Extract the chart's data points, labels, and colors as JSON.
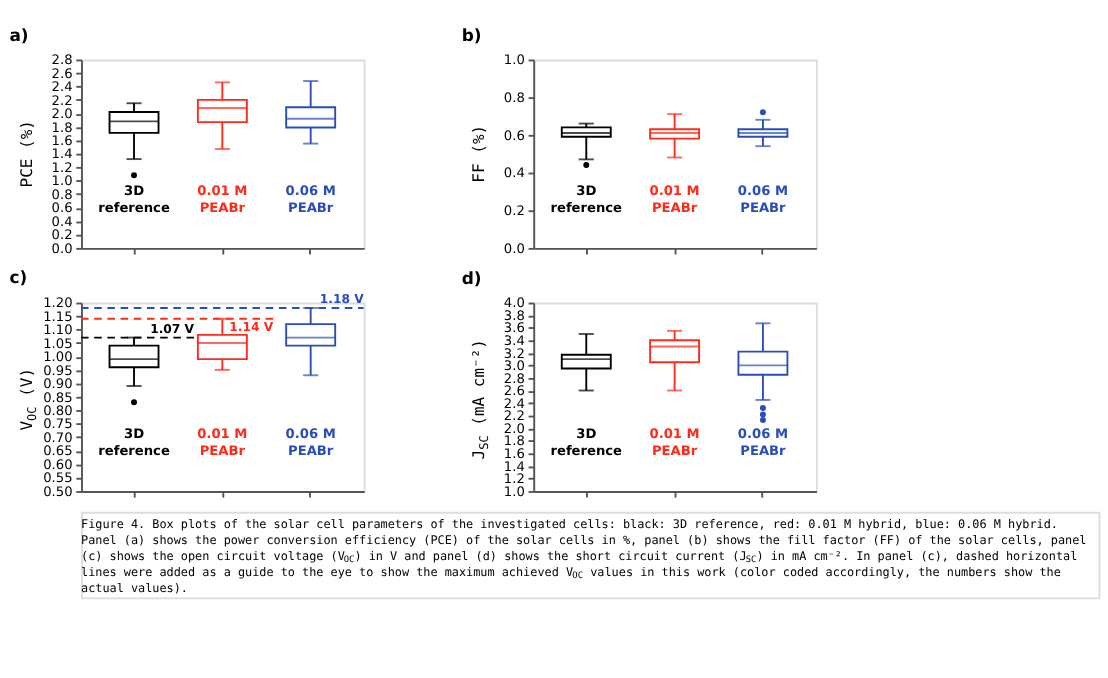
{
  "chart_data": [
    {
      "type": "box",
      "title": "a)",
      "ylabel": "PCE (%)",
      "categories": [
        "3D\nreference",
        "0.01 M\nPEABr",
        "0.06 M\nPEABr"
      ],
      "colors": [
        "#000000",
        "#ff2a1a",
        "#2a4db8"
      ],
      "boxes": [
        {
          "low": 1.32,
          "q1": 1.71,
          "median": 1.88,
          "q3": 2.02,
          "high": 2.15,
          "outliers": [
            1.08
          ]
        },
        {
          "low": 1.47,
          "q1": 1.87,
          "median": 2.08,
          "q3": 2.2,
          "high": 2.46
        },
        {
          "low": 1.55,
          "q1": 1.79,
          "median": 1.92,
          "q3": 2.09,
          "high": 2.48
        }
      ],
      "ylim": [
        0,
        2.8
      ],
      "yticks": [
        {
          "value": 0,
          "label": "0.0"
        },
        0.2,
        0.4,
        0.6,
        0.8,
        {
          "value": 1,
          "label": "1.0"
        },
        1.2,
        1.4,
        1.6,
        1.8,
        {
          "value": 2,
          "label": "2.0"
        },
        2.2,
        2.4,
        2.6,
        2.8
      ]
    },
    {
      "type": "box",
      "title": "b)",
      "ylabel": "FF (%)",
      "categories": [
        "3D\nreference",
        "0.01 M\nPEABr",
        "0.06 M\nPEABr"
      ],
      "colors": [
        "#000000",
        "#ff2a1a",
        "#2a4db8"
      ],
      "boxes": [
        {
          "low": 0.47,
          "q1": 0.59,
          "median": 0.61,
          "q3": 0.64,
          "high": 0.66,
          "outliers": [
            0.44
          ]
        },
        {
          "low": 0.48,
          "q1": 0.58,
          "median": 0.61,
          "q3": 0.63,
          "high": 0.71
        },
        {
          "low": 0.54,
          "q1": 0.59,
          "median": 0.61,
          "q3": 0.63,
          "high": 0.68,
          "outliers": [
            0.72
          ]
        }
      ],
      "ylim": [
        0,
        1
      ],
      "yticks": [
        {
          "value": 0,
          "label": "0.0"
        },
        0.2,
        0.4,
        0.6,
        0.8,
        {
          "value": 1,
          "label": "1.0"
        }
      ]
    },
    {
      "type": "box",
      "title": "c)",
      "ylabel": "V$_{OC}$ (V)",
      "categories": [
        "3D\nreference",
        "0.01 M\nPEABr",
        "0.06 M\nPEABr"
      ],
      "colors": [
        "#000000",
        "#ff2a1a",
        "#2a4db8"
      ],
      "boxes": [
        {
          "low": 0.89,
          "q1": 0.96,
          "median": 0.99,
          "q3": 1.04,
          "high": 1.07,
          "outliers": [
            0.83
          ]
        },
        {
          "low": 0.95,
          "q1": 0.99,
          "median": 1.05,
          "q3": 1.08,
          "high": 1.14
        },
        {
          "low": 0.93,
          "q1": 1.04,
          "median": 1.07,
          "q3": 1.12,
          "high": 1.18
        }
      ],
      "ylim": [
        0.5,
        1.2
      ],
      "yticks": [
        {
          "value": 0.5,
          "label": "0.50"
        },
        0.55,
        {
          "value": 0.6,
          "label": "0.60"
        },
        0.65,
        {
          "value": 0.7,
          "label": "0.70"
        },
        0.75,
        {
          "value": 0.8,
          "label": "0.80"
        },
        0.85,
        {
          "value": 0.9,
          "label": "0.90"
        },
        0.95,
        {
          "value": 1,
          "label": "1.00"
        },
        1.05,
        {
          "value": 1.1,
          "label": "1.10"
        },
        1.15,
        {
          "value": 1.2,
          "label": "1.20"
        }
      ],
      "ref_lines": [
        {
          "axis": "y",
          "value": 1.07,
          "label": "1.07 V",
          "color": "#000000",
          "line_style": "dashed"
        },
        {
          "axis": "y",
          "value": 1.14,
          "label": "1.14 V",
          "color": "#ff2a1a",
          "line_style": "dashed"
        },
        {
          "axis": "y",
          "value": 1.18,
          "label": "1.18 V",
          "color": "#2a4db8",
          "line_style": "dashed"
        }
      ]
    },
    {
      "type": "box",
      "title": "d)",
      "ylabel": "J$_{SC}$ (mA cm⁻²)",
      "categories": [
        "3D\nreference",
        "0.01 M\nPEABr",
        "0.06 M\nPEABr"
      ],
      "colors": [
        "#000000",
        "#ff2a1a",
        "#2a4db8"
      ],
      "boxes": [
        {
          "low": 2.6,
          "q1": 2.95,
          "median": 3.1,
          "q3": 3.17,
          "high": 3.5
        },
        {
          "low": 2.6,
          "q1": 3.05,
          "median": 3.3,
          "q3": 3.4,
          "high": 3.55
        },
        {
          "low": 2.45,
          "q1": 2.85,
          "median": 3.0,
          "q3": 3.22,
          "high": 3.67,
          "outliers": [
            2.32,
            2.22,
            2.13
          ]
        }
      ],
      "ylim": [
        1,
        4
      ],
      "yticks": [
        {
          "value": 1,
          "label": "1.0"
        },
        1.2,
        1.4,
        1.6,
        1.8,
        {
          "value": 2,
          "label": "2.0"
        },
        2.2,
        2.4,
        2.6,
        2.8,
        {
          "value": 3,
          "label": "3.0"
        },
        3.2,
        3.4,
        3.6,
        3.8,
        {
          "value": 4,
          "label": "4.0"
        }
      ],
      "annotations": [
        "Figure 4. Box plots of the solar cell parameters of the investigated cells: black: 3D reference, red: 0.01 M hybrid, blue: 0.06 M hybrid. Panel (a) shows the power conversion efficiency (PCE) of the solar cells in %, panel (b) shows the fill factor (FF) of the solar cells, panel (c) shows the open circuit voltage (V$_{OC}$) in V and panel (d) shows the short circuit current (J$_{SC}$) in mA cm⁻². In panel (c), dashed horizontal lines were added as a guide to the eye to show the maximum achieved V$_{OC}$ values in this work (color coded accordingly, the numbers show the actual values)."
      ]
    }
  ]
}
